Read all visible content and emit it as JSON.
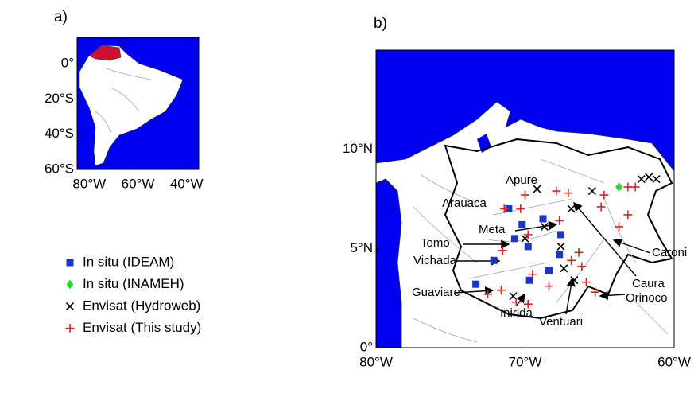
{
  "panels": [
    {
      "label": "a)",
      "xlim": [
        -85,
        -35
      ],
      "ylim": [
        -60,
        15
      ],
      "xticks": [
        {
          "value": -80,
          "label": "80°W"
        },
        {
          "value": -60,
          "label": "60°W"
        },
        {
          "value": -40,
          "label": "40°W"
        }
      ],
      "yticks": [
        {
          "value": 0,
          "label": "0°"
        },
        {
          "value": -20,
          "label": "20°S"
        },
        {
          "value": -40,
          "label": "40°S"
        },
        {
          "value": -60,
          "label": "60°S"
        }
      ]
    },
    {
      "label": "b)",
      "xlim": [
        -80,
        -60
      ],
      "ylim": [
        0,
        15
      ],
      "xticks": [
        {
          "value": -80,
          "label": "80°W"
        },
        {
          "value": -70,
          "label": "70°W"
        },
        {
          "value": -60,
          "label": "60°W"
        }
      ],
      "yticks": [
        {
          "value": 0,
          "label": "0°"
        },
        {
          "value": 5,
          "label": "5°N"
        },
        {
          "value": 10,
          "label": "10°N"
        }
      ]
    }
  ],
  "legend": [
    {
      "name": "In situ (IDEAM)",
      "color": "#1a35c8",
      "marker": "square",
      "lon": [
        -71.1,
        -70.2,
        -68.8,
        -70.7,
        -67.6,
        -67.7,
        -72.1,
        -73.3,
        -69.7,
        -68.4,
        -69.8
      ],
      "lat": [
        7.0,
        6.2,
        6.5,
        5.5,
        5.7,
        4.7,
        4.4,
        3.2,
        3.4,
        3.9,
        5.1
      ]
    },
    {
      "name": "In situ (INAMEH)",
      "color": "#22dd22",
      "marker": "diamond",
      "lon": [
        -63.7
      ],
      "lat": [
        8.1
      ]
    },
    {
      "name": "Envisat (Hydroweb)",
      "color": "#000000",
      "marker": "x",
      "lon": [
        -69.2,
        -66.9,
        -65.5,
        -62.2,
        -61.7,
        -61.2,
        -68.7,
        -67.6,
        -67.4,
        -70.8,
        -66.7,
        -70.0
      ],
      "lat": [
        8.0,
        7.0,
        7.9,
        8.5,
        8.6,
        8.5,
        6.1,
        5.1,
        4.0,
        2.6,
        3.4,
        5.5
      ]
    },
    {
      "name": "Envisat (This study)",
      "color": "#e0201c",
      "marker": "plus",
      "lon": [
        -71.4,
        -70.0,
        -67.9,
        -67.1,
        -64.7,
        -63.1,
        -62.6,
        -64.9,
        -63.1,
        -63.7,
        -67.7,
        -66.4,
        -66.2,
        -65.9,
        -65.3,
        -72.5,
        -71.6,
        -70.6,
        -69.8,
        -68.4,
        -69.5,
        -71.5,
        -69.8,
        -66.9,
        -70.3
      ],
      "lat": [
        7.0,
        7.7,
        7.9,
        7.8,
        7.7,
        8.1,
        8.1,
        7.1,
        6.7,
        6.1,
        6.4,
        4.8,
        4.1,
        3.3,
        2.8,
        2.7,
        2.9,
        2.3,
        2.2,
        3.1,
        3.7,
        4.9,
        5.7,
        4.4,
        7.0
      ]
    }
  ],
  "rivers": [
    "Apure",
    "Arauaca",
    "Meta",
    "Tomo",
    "Vichada",
    "Guaviare",
    "Inirida",
    "Ventuari",
    "Caura",
    "Orinoco",
    "Caroni"
  ]
}
